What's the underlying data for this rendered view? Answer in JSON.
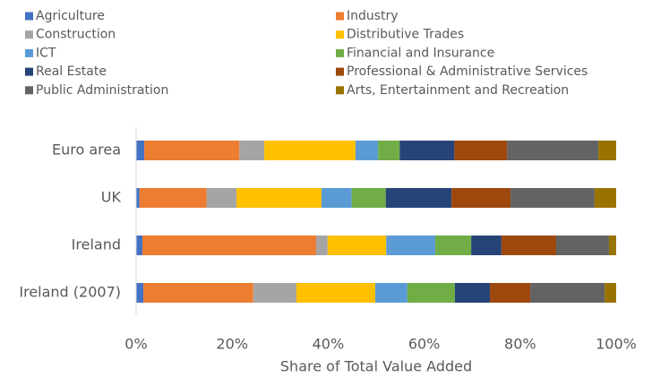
{
  "chart_data": {
    "type": "stacked_barh",
    "x_label": "Share of Total Value Added",
    "categories": [
      "Euro area",
      "UK",
      "Ireland",
      "Ireland (2007)"
    ],
    "series": [
      {
        "name": "Agriculture",
        "color": "#4472c4",
        "values": [
          1.7,
          0.7,
          1.3,
          1.5
        ]
      },
      {
        "name": "Industry",
        "color": "#ed7d31",
        "values": [
          19.8,
          14.0,
          36.2,
          22.9
        ]
      },
      {
        "name": "Construction",
        "color": "#a5a5a5",
        "values": [
          5.2,
          6.2,
          2.4,
          9.0
        ]
      },
      {
        "name": "Distributive Trades",
        "color": "#ffc000",
        "values": [
          19.0,
          17.7,
          12.2,
          16.4
        ]
      },
      {
        "name": "ICT",
        "color": "#5b9bd5",
        "values": [
          4.7,
          6.3,
          10.2,
          6.7
        ]
      },
      {
        "name": "Financial and Insurance",
        "color": "#70ad47",
        "values": [
          4.5,
          7.1,
          7.5,
          9.9
        ]
      },
      {
        "name": "Real Estate",
        "color": "#264478",
        "values": [
          11.4,
          13.7,
          6.3,
          7.3
        ]
      },
      {
        "name": "Professional & Administrative Services",
        "color": "#9e480e",
        "values": [
          11.0,
          12.3,
          11.4,
          8.4
        ]
      },
      {
        "name": "Public Administration",
        "color": "#636363",
        "values": [
          19.0,
          17.5,
          11.0,
          15.5
        ]
      },
      {
        "name": "Arts, Entertainment and Recreation",
        "color": "#997300",
        "values": [
          3.7,
          4.5,
          1.5,
          2.4
        ]
      }
    ],
    "xlim": [
      0,
      100
    ],
    "xticks": [
      {
        "value": 0,
        "label": "0%"
      },
      {
        "value": 20,
        "label": "20%"
      },
      {
        "value": 40,
        "label": "40%"
      },
      {
        "value": 60,
        "label": "60%"
      },
      {
        "value": 80,
        "label": "80%"
      },
      {
        "value": 100,
        "label": "100%"
      }
    ]
  }
}
